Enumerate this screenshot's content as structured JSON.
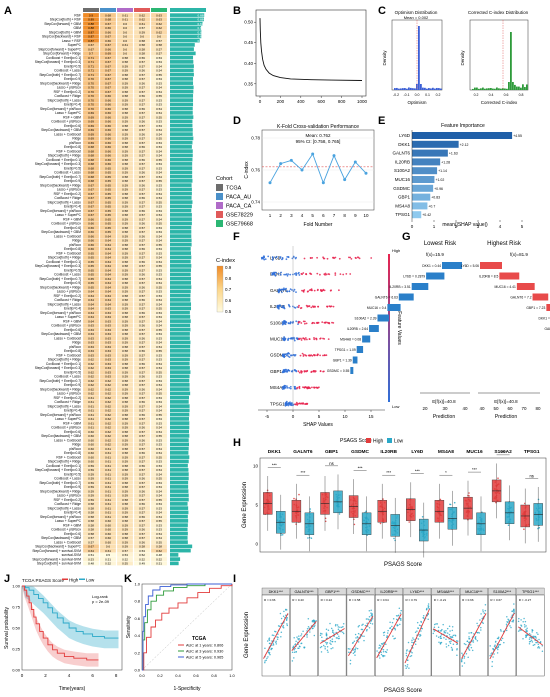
{
  "panel_letters": [
    "A",
    "B",
    "C",
    "D",
    "E",
    "F",
    "G",
    "H",
    "I",
    "J",
    "K"
  ],
  "A": {
    "cohort_title": "Cohort",
    "cohorts": [
      {
        "name": "TCGA",
        "color": "#6d6d6d"
      },
      {
        "name": "PACA_AU",
        "color": "#4a90c9"
      },
      {
        "name": "PACA_CA",
        "color": "#b06bc8"
      },
      {
        "name": "GSE78229",
        "color": "#e05a5a"
      },
      {
        "name": "GSE79668",
        "color": "#2bb673"
      }
    ],
    "scale_title": "C-index",
    "scale_ticks": [
      "0.9",
      "0.8",
      "0.7",
      "0.6",
      "0.5"
    ],
    "top_rows": [
      {
        "label": "RSF",
        "vals": [
          "0.9",
          "0.68",
          "0.61",
          "0.62",
          "0.63"
        ],
        "mean": "0.688"
      },
      {
        "label": "StepCox[both] + RSF",
        "vals": [
          "0.89",
          "0.68",
          "0.61",
          "0.62",
          "0.63"
        ],
        "mean": "0.686"
      },
      {
        "label": "StepCox[forward] + GBM",
        "vals": [
          "0.88",
          "0.67",
          "0.6",
          "0.61",
          "0.62"
        ],
        "mean": "0.676"
      },
      {
        "label": "GBM",
        "vals": [
          "0.88",
          "0.66",
          "0.6",
          "0.57",
          "0.62"
        ],
        "mean": "0.666"
      },
      {
        "label": "StepCox[both] + GBM",
        "vals": [
          "0.87",
          "0.66",
          "0.6",
          "0.59",
          "0.62"
        ],
        "mean": "0.668"
      },
      {
        "label": "StepCox[backward] + RSF",
        "vals": [
          "0.87",
          "0.67",
          "0.6",
          "0.6",
          "0.6"
        ],
        "mean": "0.668"
      },
      {
        "label": "Lasso + RSF",
        "vals": [
          "0.87",
          "0.66",
          "0.6",
          "0.58",
          "0.57"
        ],
        "mean": "0.656"
      },
      {
        "label": "SuperPC",
        "vals": [
          "0.67",
          "0.67",
          "0.61",
          "0.58",
          "0.58"
        ],
        "mean": "0.622"
      },
      {
        "label": "StepCox[forward] + SuperPC",
        "vals": [
          "0.67",
          "0.66",
          "0.6",
          "0.58",
          "0.57"
        ],
        "mean": "0.616"
      },
      {
        "label": "StepCox[forward] + Ridge",
        "vals": [
          "0.7",
          "0.69",
          "0.6",
          "0.58",
          "0.57"
        ],
        "mean": "0.628"
      }
    ],
    "bottom_rows": [
      {
        "label": "StepCox[backward] + SuperPC",
        "vals": [
          "0.67",
          "0.6",
          "0.59",
          "0.58",
          "0.58"
        ],
        "mean": "0.604"
      },
      {
        "label": "StepCox[forward] + survival-SVM",
        "vals": [
          "0.64",
          "0.61",
          "0.57",
          "0.53",
          "0.62"
        ],
        "mean": "0.594"
      },
      {
        "label": "survival-SVM",
        "vals": [
          "0.51",
          "0.5",
          "0.53",
          "0.52",
          "0.48"
        ],
        "mean": "0.508"
      },
      {
        "label": "StepCox[forward] + survival-SVM",
        "vals": [
          "0.53",
          "0.51",
          "0.52",
          "0.52",
          "0.52"
        ],
        "mean": "0.520"
      },
      {
        "label": "StepCox[both] + survival-SVM",
        "vals": [
          "0.48",
          "0.52",
          "0.55",
          "0.49",
          "0.51"
        ],
        "mean": "0.510"
      }
    ]
  },
  "B": {
    "x_ticks": [
      "0",
      "200",
      "400",
      "600",
      "800",
      "1000"
    ],
    "y_ticks": [
      "0.35",
      "0.40",
      "0.45",
      "0.50"
    ],
    "curve": [
      [
        0,
        0.51
      ],
      [
        3,
        0.48
      ],
      [
        8,
        0.45
      ],
      [
        15,
        0.43
      ],
      [
        25,
        0.41
      ],
      [
        40,
        0.395
      ],
      [
        60,
        0.385
      ],
      [
        90,
        0.376
      ],
      [
        130,
        0.37
      ],
      [
        200,
        0.365
      ],
      [
        300,
        0.362
      ],
      [
        500,
        0.36
      ],
      [
        700,
        0.359
      ],
      [
        1000,
        0.358
      ]
    ]
  },
  "C": {
    "left_title": "Optimism Distribution",
    "left_sub": "Mean = 0.002",
    "right_title": "Corrected C-index Distribution",
    "left_xlabel": "Optimism",
    "right_xlabel": "Corrected C-index",
    "ylabel": "Density",
    "left_x_ticks": [
      "-0.2",
      "-0.1",
      "0.0",
      "0.1",
      "0.2"
    ],
    "right_x_ticks": [
      "0.2",
      "0.4",
      "0.6",
      "0.8"
    ]
  },
  "D": {
    "title": "K-Fold Cross-validation Performance",
    "mean_label": "Mean: 0.762",
    "ci_label": "95% CI: [0.758, 0.765]",
    "xlabel": "Fold Number",
    "ylabel": "C-index",
    "y_ticks": [
      "0.74",
      "0.76",
      "0.78"
    ],
    "folds": [
      "1",
      "2",
      "3",
      "4",
      "5",
      "6",
      "7",
      "8",
      "9",
      "10"
    ],
    "values": [
      0.752,
      0.764,
      0.766,
      0.76,
      0.77,
      0.752,
      0.769,
      0.754,
      0.765,
      0.758
    ],
    "ylim": [
      0.735,
      0.785
    ],
    "mean": 0.762
  },
  "E": {
    "title": "Feature Importance",
    "xlabel": "mean(|SHAP value|)",
    "x_ticks": [
      "0",
      "1",
      "2",
      "3",
      "4",
      "5"
    ],
    "features": [
      "LY6D",
      "DKK1",
      "GALNT6",
      "IL20RB",
      "S100A2",
      "MUC16",
      "GSDMC",
      "GBP1",
      "MS4A8",
      "TPSG1"
    ],
    "values": [
      4.55,
      2.12,
      1.63,
      1.28,
      1.14,
      1.02,
      0.96,
      0.83,
      0.7,
      0.42
    ],
    "value_labels": [
      "+4.55",
      "+2.12",
      "+1.63",
      "+1.28",
      "+1.14",
      "+1.02",
      "+0.96",
      "+0.83",
      "+0.7",
      "+0.42"
    ],
    "xlim": [
      0,
      5
    ]
  },
  "F": {
    "features": [
      "LY6D",
      "DKK1",
      "GALNT6",
      "IL20RB",
      "S100A2",
      "MUC16",
      "GSDMC",
      "GBP1",
      "MS4A8",
      "TPSG1"
    ],
    "xlabel": "SHAP Values",
    "x_ticks": [
      "-5",
      "0",
      "5",
      "10",
      "15"
    ],
    "color_label": "Feature Values",
    "high": "High",
    "low": "Low"
  },
  "G": {
    "left_title": "Lowest Risk",
    "right_title": "Highest Risk",
    "left_fx": "f(x)=15.9",
    "right_fx": "f(x)=81.9",
    "left_ef": "E[f(x)]=40.8",
    "right_ef": "E[f(x)]=40.8",
    "xlabel": "Prediction",
    "left_x_ticks": [
      "20",
      "30",
      "40"
    ],
    "right_x_ticks": [
      "40",
      "50",
      "60",
      "70",
      "80"
    ],
    "left_labels": [
      "DKK1 = 0.44",
      "LY6D = 0.2879",
      "IL20RB = 3.51",
      "GALNT6 = 6.63",
      "MUC16 = 0.4",
      "S100A2 = 2.39",
      "IL20RB = 2.64",
      "MS4A8 = 0.08",
      "TPSG1 = 1.09",
      "GBP1 = 1.39",
      "GSDMC = 0.55"
    ],
    "right_labels": [
      "LY6D = 5.06",
      "IL20RB = 8.5",
      "MUC16 = 4.41",
      "GALNT6 = 7.2",
      "GBP1 = 7.23",
      "DKK1 = 5.88",
      "GALNT6 = 5.44",
      "TPSG1 = 0.11",
      "GSDMC = 1.77",
      "S100A2 = 8.47"
    ]
  },
  "H": {
    "title": "PSAGS Score",
    "legend_high": "High",
    "legend_low": "Low",
    "xlabel": "PSAGS Score",
    "ylabel": "Gene Expression",
    "y_ticks": [
      "10",
      "5",
      "0"
    ],
    "genes": [
      "DKK1",
      "GALNT6",
      "GBP1",
      "GSDMC",
      "IL20RB",
      "LY6D",
      "MS4A8",
      "MUC16",
      "S100A2",
      "TPSG1"
    ],
    "sig": [
      "***",
      "***",
      "ns",
      "***",
      "***",
      "***",
      "*",
      "***",
      "***",
      "ns"
    ],
    "high_medians": [
      5.2,
      4.2,
      5.2,
      4.8,
      4.2,
      4.4,
      4.2,
      4.6,
      6.8,
      3.6
    ],
    "low_medians": [
      2.8,
      2.6,
      5.4,
      2.6,
      2.4,
      1.8,
      3.3,
      2.6,
      4.0,
      3.8
    ]
  },
  "J": {
    "title": "TCGA PSAGS Score",
    "legend_high": "High",
    "legend_low": "Low",
    "pval": "Log-rank\np = 2e-09",
    "xlabel": "Time(years)",
    "ylabel": "Survival probability",
    "x_ticks": [
      "0",
      "2",
      "4",
      "6",
      "8"
    ],
    "y_ticks": [
      "1.00",
      "0.75",
      "0.50",
      "0.25",
      "0.00"
    ]
  },
  "K": {
    "title": "TCGA",
    "xlabel": "1-Specificity",
    "ylabel": "Sensitivity",
    "x_ticks": [
      "0.0",
      "0.2",
      "0.4",
      "0.6",
      "0.8",
      "1.0"
    ],
    "y_ticks": [
      "1.0",
      "0.8",
      "0.6",
      "0.4",
      "0.2",
      "0.0"
    ],
    "legend": [
      "AUC at 1 years: 0.806",
      "AUC at 3 years: 0.930",
      "AUC at 5 years: 0.965"
    ]
  },
  "I": {
    "xlabel": "PSAGS Score",
    "ylabel": "Gene Expression",
    "genes": [
      "DKK1***",
      "GALNT6***",
      "GBP1***",
      "GSDMC***",
      "IL20RB***",
      "LY6D***",
      "MS4A8***",
      "MUC16***",
      "S100A2***",
      "TPSG1***"
    ],
    "r_labels": [
      "R = 0.66",
      "R = 0.43",
      "R = 0.22",
      "R = 0.58",
      "R = 0.64",
      "R = 0.79",
      "R = -0.21",
      "R = 0.66",
      "R = 0.67",
      "R = -0.27"
    ]
  },
  "colors": {
    "high": "#e23b3b",
    "low": "#2aa8c8",
    "axis": "#333333",
    "heat_low": "#fffbe0",
    "heat_high": "#f08a24"
  }
}
